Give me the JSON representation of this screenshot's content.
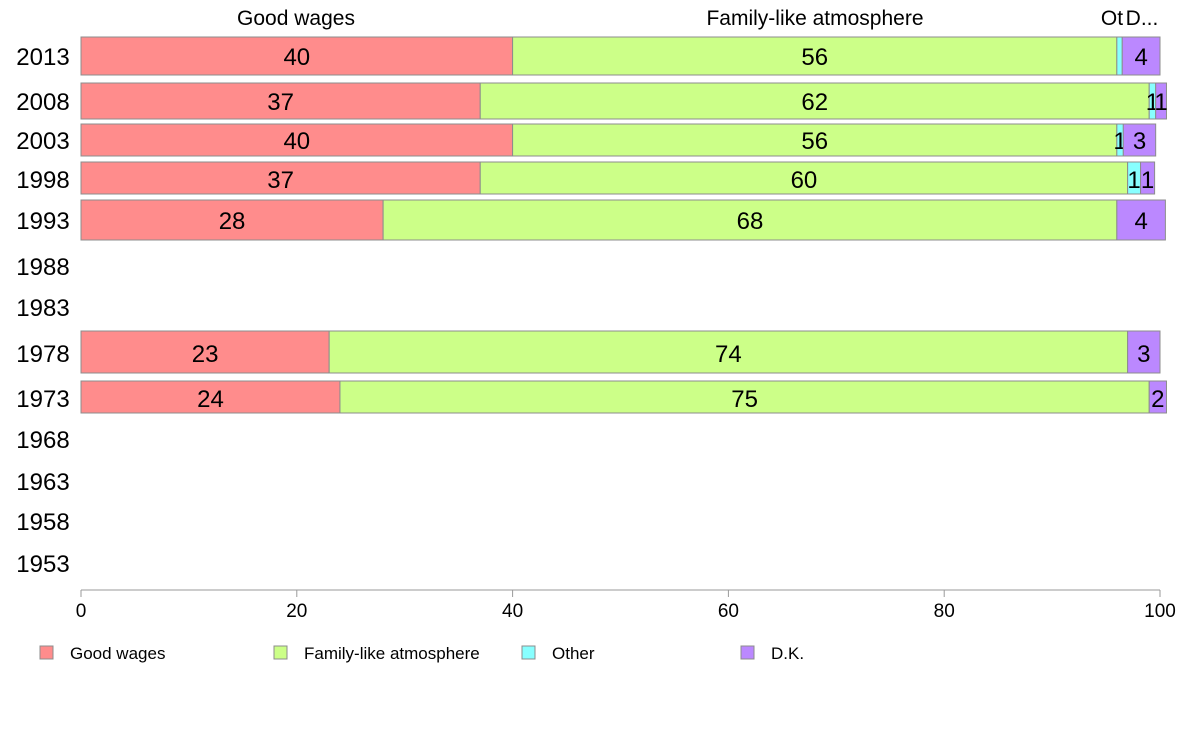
{
  "chart_data": {
    "type": "bar",
    "orientation": "horizontal",
    "stacked": true,
    "categories": [
      "2013",
      "2008",
      "2003",
      "1998",
      "1993",
      "1988",
      "1983",
      "1978",
      "1973",
      "1968",
      "1963",
      "1958",
      "1953"
    ],
    "series": [
      {
        "name": "Good wages",
        "color": "#ff8c8c",
        "values": [
          40,
          37,
          40,
          37,
          28,
          null,
          null,
          23,
          24,
          null,
          null,
          null,
          null
        ],
        "labels": [
          "40",
          "37",
          "40",
          "37",
          "28",
          "",
          "",
          "23",
          "24",
          "",
          "",
          "",
          ""
        ]
      },
      {
        "name": "Family-like atmosphere",
        "color": "#ccff88",
        "values": [
          56,
          62,
          56,
          60,
          68,
          null,
          null,
          74,
          75,
          null,
          null,
          null,
          null
        ],
        "labels": [
          "56",
          "62",
          "56",
          "60",
          "68",
          "",
          "",
          "74",
          "75",
          "",
          "",
          "",
          ""
        ]
      },
      {
        "name": "Other",
        "color": "#88ffff",
        "values": [
          0.5,
          0.6,
          0.6,
          1.2,
          0,
          null,
          null,
          0,
          0,
          null,
          null,
          null,
          null
        ],
        "labels": [
          "",
          "1",
          "1",
          "1",
          "",
          "",
          "",
          "",
          "",
          "",
          "",
          "",
          ""
        ]
      },
      {
        "name": "D.K.",
        "color": "#bb88ff",
        "values": [
          3.5,
          1,
          3,
          1.3,
          4.5,
          null,
          null,
          3,
          1.6,
          null,
          null,
          null,
          null
        ],
        "labels": [
          "4",
          "1",
          "3",
          "1",
          "4",
          "",
          "",
          "3",
          "2",
          "",
          "",
          "",
          ""
        ]
      }
    ],
    "top_labels": [
      "Good wages",
      "Family-like atmosphere",
      "Ot",
      "D..."
    ],
    "xlim": [
      0,
      100
    ],
    "x_ticks": [
      0,
      20,
      40,
      60,
      80,
      100
    ],
    "grid": false,
    "legend": {
      "position": "bottom",
      "entries": [
        "Good wages",
        "Family-like atmosphere",
        "Other",
        "D.K."
      ]
    }
  }
}
